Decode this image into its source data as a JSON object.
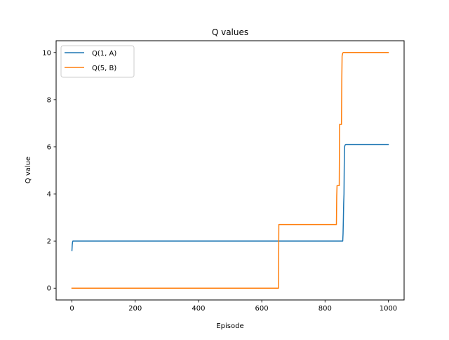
{
  "chart_data": {
    "type": "line",
    "title": "Q values",
    "xlabel": "Episode",
    "ylabel": "Q value",
    "xlim": [
      -50,
      1050
    ],
    "ylim": [
      -0.5,
      10.5
    ],
    "xticks": [
      0,
      200,
      400,
      600,
      800,
      1000
    ],
    "yticks": [
      0,
      2,
      4,
      6,
      8,
      10
    ],
    "xtick_labels": [
      "0",
      "200",
      "400",
      "600",
      "800",
      "1000"
    ],
    "ytick_labels": [
      "0",
      "2",
      "4",
      "6",
      "8",
      "10"
    ],
    "grid": false,
    "legend_position": "top-left",
    "series": [
      {
        "name": "Q(1, A)",
        "color": "#1f77b4",
        "x": [
          0,
          1,
          2,
          3,
          856,
          857,
          858,
          859,
          860,
          861,
          862,
          863,
          864,
          866,
          1000
        ],
        "y": [
          1.6,
          1.85,
          1.96,
          2.0,
          2.0,
          2.3,
          2.9,
          3.6,
          4.0,
          5.5,
          6.0,
          6.06,
          6.08,
          6.1,
          6.1
        ]
      },
      {
        "name": "Q(5, B)",
        "color": "#ff7f0e",
        "x": [
          0,
          653,
          654,
          836,
          837,
          838,
          845,
          846,
          847,
          852,
          853,
          854,
          856,
          858,
          1000
        ],
        "y": [
          0,
          0,
          2.7,
          2.7,
          3.9,
          4.35,
          4.35,
          6.95,
          6.95,
          6.95,
          8.8,
          9.85,
          9.98,
          10.0,
          10.0
        ]
      }
    ]
  }
}
